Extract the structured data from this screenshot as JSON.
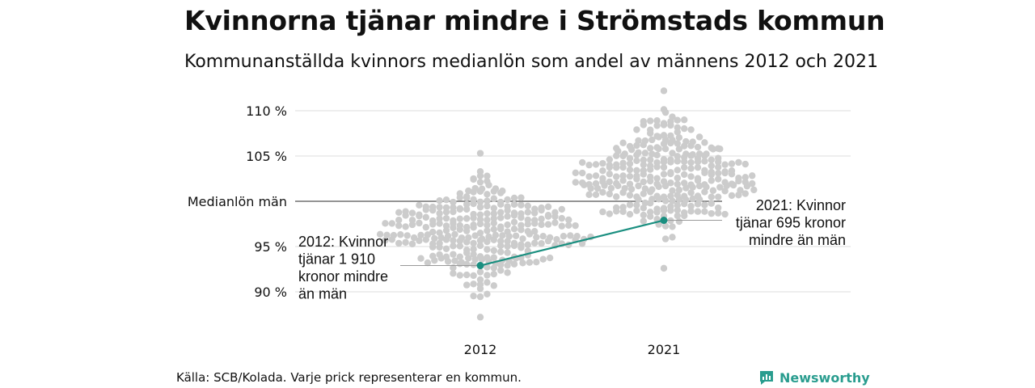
{
  "title": "Kvinnorna tjänar mindre i Strömstads kommun",
  "subtitle": "Kommunanställda kvinnors medianlön som andel av männens 2012 och 2021",
  "source": "Källa: SCB/Kolada. Varje prick representerar en kommun.",
  "brand": {
    "name": "Newsworthy",
    "icon": "newsworthy-logo-icon",
    "color": "#2a9d8f"
  },
  "colors": {
    "dots": "#cccccc",
    "highlight": "#1a8f80",
    "grid": "#e3e3e3",
    "reference": "#555555"
  },
  "chart_data": {
    "type": "scatter",
    "subtype": "beeswarm",
    "title": "Kvinnorna tjänar mindre i Strömstads kommun",
    "subtitle": "Kommunanställda kvinnors medianlön som andel av männens 2012 och 2021",
    "categories": [
      "2012",
      "2021"
    ],
    "y_ticks": [
      {
        "value": 90,
        "label": "90 %"
      },
      {
        "value": 95,
        "label": "95 %"
      },
      {
        "value": 100,
        "label": "Medianlön män"
      },
      {
        "value": 105,
        "label": "105 %"
      },
      {
        "value": 110,
        "label": "110 %"
      }
    ],
    "ylim": [
      86.5,
      112
    ],
    "grid": true,
    "reference_line": {
      "value": 100,
      "label": "Medianlön män"
    },
    "distribution": {
      "2012": {
        "min": 87.2,
        "max": 105.3,
        "center": 96.6,
        "spread": 2.7,
        "count": 290
      },
      "2021": {
        "min": 92.6,
        "max": 112.2,
        "center": 102.9,
        "spread": 2.8,
        "count": 290
      }
    },
    "highlight": {
      "name": "Strömstads kommun",
      "values": [
        {
          "x": "2012",
          "y": 92.9
        },
        {
          "x": "2021",
          "y": 97.9
        }
      ],
      "annotations": [
        {
          "x": "2012",
          "text_lines": [
            "2012: Kvinnor",
            "tjänar 1 910",
            "kronor mindre",
            "än män"
          ]
        },
        {
          "x": "2021",
          "text_lines": [
            "2021: Kvinnor",
            "tjänar 695 kronor",
            "mindre än män"
          ]
        }
      ]
    }
  }
}
